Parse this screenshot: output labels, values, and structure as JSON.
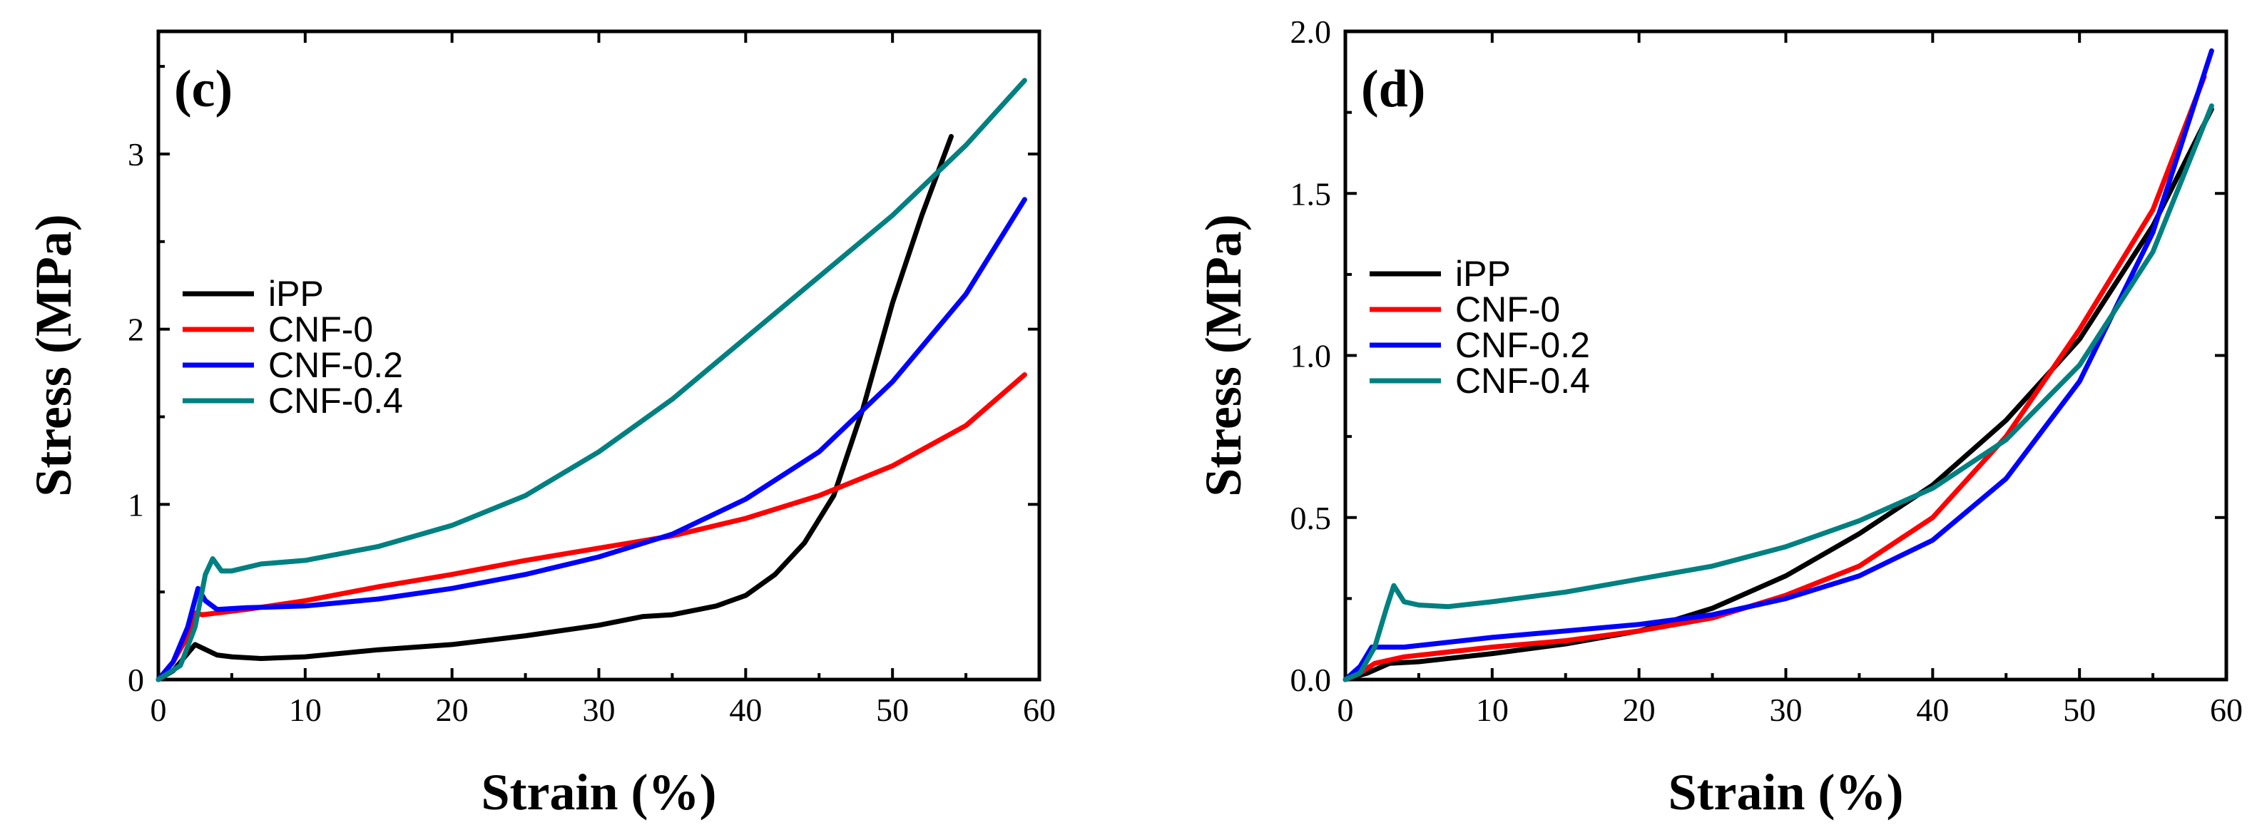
{
  "chart_data": [
    {
      "type": "line",
      "panel_label": "(c)",
      "xlabel": "Strain (%)",
      "ylabel": "Stress (MPa)",
      "xlim": [
        0,
        60
      ],
      "ylim": [
        0,
        3.7
      ],
      "xticks": [
        0,
        10,
        20,
        30,
        40,
        50,
        60
      ],
      "yticks": [
        0,
        1,
        2,
        3
      ],
      "ytick_labels": [
        "0",
        "1",
        "2",
        "3"
      ],
      "legend_position": "center-left",
      "series": [
        {
          "name": "iPP",
          "color": "#000000",
          "points": [
            [
              0,
              0
            ],
            [
              1,
              0.05
            ],
            [
              2,
              0.15
            ],
            [
              2.5,
              0.2
            ],
            [
              3,
              0.18
            ],
            [
              4,
              0.14
            ],
            [
              5,
              0.13
            ],
            [
              7,
              0.12
            ],
            [
              10,
              0.13
            ],
            [
              15,
              0.17
            ],
            [
              20,
              0.2
            ],
            [
              25,
              0.25
            ],
            [
              30,
              0.31
            ],
            [
              33,
              0.36
            ],
            [
              35,
              0.37
            ],
            [
              38,
              0.42
            ],
            [
              40,
              0.48
            ],
            [
              42,
              0.6
            ],
            [
              44,
              0.78
            ],
            [
              46,
              1.05
            ],
            [
              48,
              1.55
            ],
            [
              50,
              2.15
            ],
            [
              52,
              2.65
            ],
            [
              54,
              3.1
            ]
          ]
        },
        {
          "name": "CNF-0",
          "color": "#ff0000",
          "points": [
            [
              0,
              0
            ],
            [
              1,
              0.1
            ],
            [
              2,
              0.25
            ],
            [
              2.5,
              0.38
            ],
            [
              3,
              0.37
            ],
            [
              4,
              0.38
            ],
            [
              6,
              0.4
            ],
            [
              10,
              0.45
            ],
            [
              15,
              0.53
            ],
            [
              20,
              0.6
            ],
            [
              25,
              0.68
            ],
            [
              30,
              0.75
            ],
            [
              35,
              0.82
            ],
            [
              40,
              0.92
            ],
            [
              45,
              1.05
            ],
            [
              50,
              1.22
            ],
            [
              55,
              1.45
            ],
            [
              59,
              1.74
            ]
          ]
        },
        {
          "name": "CNF-0.2",
          "color": "#0000ff",
          "points": [
            [
              0,
              0
            ],
            [
              1,
              0.1
            ],
            [
              2,
              0.3
            ],
            [
              2.7,
              0.52
            ],
            [
              3.2,
              0.45
            ],
            [
              4,
              0.4
            ],
            [
              6,
              0.41
            ],
            [
              10,
              0.42
            ],
            [
              15,
              0.46
            ],
            [
              20,
              0.52
            ],
            [
              25,
              0.6
            ],
            [
              30,
              0.7
            ],
            [
              35,
              0.83
            ],
            [
              40,
              1.03
            ],
            [
              45,
              1.3
            ],
            [
              50,
              1.7
            ],
            [
              55,
              2.2
            ],
            [
              59,
              2.74
            ]
          ]
        },
        {
          "name": "CNF-0.4",
          "color": "#008080",
          "points": [
            [
              0,
              0
            ],
            [
              1.5,
              0.08
            ],
            [
              2.5,
              0.3
            ],
            [
              3.2,
              0.6
            ],
            [
              3.7,
              0.69
            ],
            [
              4.3,
              0.62
            ],
            [
              5,
              0.62
            ],
            [
              7,
              0.66
            ],
            [
              10,
              0.68
            ],
            [
              15,
              0.76
            ],
            [
              20,
              0.88
            ],
            [
              25,
              1.05
            ],
            [
              30,
              1.3
            ],
            [
              35,
              1.6
            ],
            [
              40,
              1.95
            ],
            [
              45,
              2.3
            ],
            [
              50,
              2.65
            ],
            [
              55,
              3.05
            ],
            [
              59,
              3.42
            ]
          ]
        }
      ]
    },
    {
      "type": "line",
      "panel_label": "(d)",
      "xlabel": "Strain (%)",
      "ylabel": "Stress (MPa)",
      "xlim": [
        0,
        60
      ],
      "ylim": [
        0,
        2.0
      ],
      "xticks": [
        0,
        10,
        20,
        30,
        40,
        50,
        60
      ],
      "yticks": [
        0,
        0.5,
        1.0,
        1.5,
        2.0
      ],
      "ytick_labels": [
        "0.0",
        "0.5",
        "1.0",
        "1.5",
        "2.0"
      ],
      "legend_position": "center-left",
      "series": [
        {
          "name": "iPP",
          "color": "#000000",
          "points": [
            [
              0,
              0
            ],
            [
              1.5,
              0.02
            ],
            [
              3,
              0.05
            ],
            [
              5,
              0.055
            ],
            [
              10,
              0.08
            ],
            [
              15,
              0.11
            ],
            [
              20,
              0.15
            ],
            [
              25,
              0.22
            ],
            [
              30,
              0.32
            ],
            [
              35,
              0.45
            ],
            [
              40,
              0.6
            ],
            [
              45,
              0.8
            ],
            [
              50,
              1.05
            ],
            [
              55,
              1.4
            ],
            [
              59,
              1.76
            ]
          ]
        },
        {
          "name": "CNF-0",
          "color": "#ff0000",
          "points": [
            [
              0,
              0
            ],
            [
              1,
              0.02
            ],
            [
              2,
              0.05
            ],
            [
              4,
              0.07
            ],
            [
              8,
              0.09
            ],
            [
              10,
              0.1
            ],
            [
              15,
              0.12
            ],
            [
              20,
              0.15
            ],
            [
              25,
              0.19
            ],
            [
              30,
              0.26
            ],
            [
              35,
              0.35
            ],
            [
              40,
              0.5
            ],
            [
              45,
              0.75
            ],
            [
              50,
              1.08
            ],
            [
              55,
              1.45
            ],
            [
              58.5,
              1.86
            ]
          ]
        },
        {
          "name": "CNF-0.2",
          "color": "#0000ff",
          "points": [
            [
              0,
              0
            ],
            [
              1,
              0.04
            ],
            [
              1.8,
              0.1
            ],
            [
              2.5,
              0.1
            ],
            [
              4,
              0.1
            ],
            [
              6,
              0.11
            ],
            [
              10,
              0.13
            ],
            [
              15,
              0.15
            ],
            [
              20,
              0.17
            ],
            [
              25,
              0.2
            ],
            [
              30,
              0.25
            ],
            [
              35,
              0.32
            ],
            [
              40,
              0.43
            ],
            [
              45,
              0.62
            ],
            [
              50,
              0.92
            ],
            [
              55,
              1.38
            ],
            [
              59,
              1.94
            ]
          ]
        },
        {
          "name": "CNF-0.4",
          "color": "#008080",
          "points": [
            [
              0,
              0
            ],
            [
              1,
              0.02
            ],
            [
              2,
              0.1
            ],
            [
              2.8,
              0.22
            ],
            [
              3.3,
              0.29
            ],
            [
              4,
              0.24
            ],
            [
              5,
              0.23
            ],
            [
              7,
              0.225
            ],
            [
              10,
              0.24
            ],
            [
              15,
              0.27
            ],
            [
              20,
              0.31
            ],
            [
              25,
              0.35
            ],
            [
              30,
              0.41
            ],
            [
              35,
              0.49
            ],
            [
              40,
              0.59
            ],
            [
              45,
              0.74
            ],
            [
              50,
              0.97
            ],
            [
              55,
              1.32
            ],
            [
              59,
              1.77
            ]
          ]
        }
      ]
    }
  ]
}
